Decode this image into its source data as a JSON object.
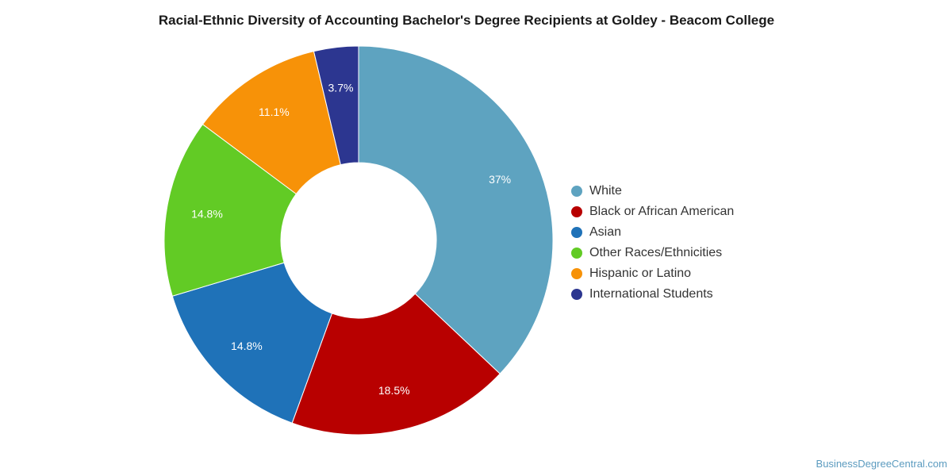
{
  "chart_data": {
    "type": "pie",
    "title": "Racial-Ethnic Diversity of Accounting Bachelor's Degree Recipients at Goldey - Beacom College",
    "donut": true,
    "legend_position": "right",
    "slices": [
      {
        "name": "White",
        "value": 37,
        "label": "37%",
        "color": "#5ea3c0"
      },
      {
        "name": "Black or African American",
        "value": 18.5,
        "label": "18.5%",
        "color": "#b80000"
      },
      {
        "name": "Asian",
        "value": 14.8,
        "label": "14.8%",
        "color": "#1f72b8"
      },
      {
        "name": "Other Races/Ethnicities",
        "value": 14.8,
        "label": "14.8%",
        "color": "#62cb25"
      },
      {
        "name": "Hispanic or Latino",
        "value": 11.1,
        "label": "11.1%",
        "color": "#f79208"
      },
      {
        "name": "International Students",
        "value": 3.7,
        "label": "3.7%",
        "color": "#2c3690"
      }
    ]
  },
  "credit": "BusinessDegreeCentral.com"
}
